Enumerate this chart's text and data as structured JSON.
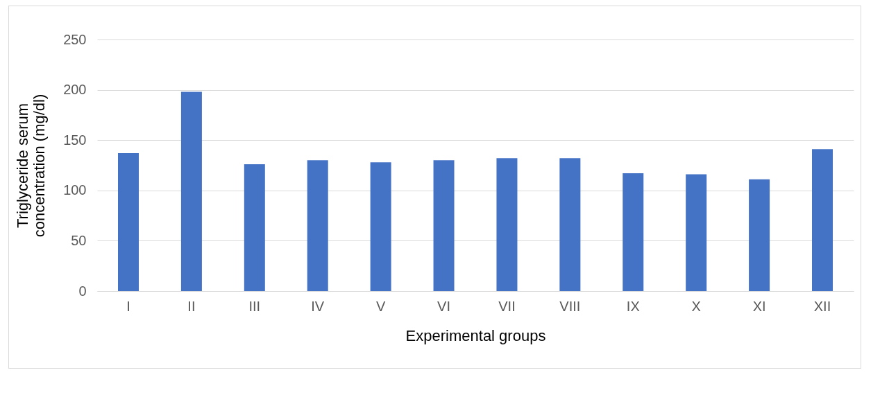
{
  "chart_data": {
    "type": "bar",
    "xlabel": "Experimental groups",
    "ylabel": "Triglyceride serum concentration (mg/dl)",
    "categories": [
      "I",
      "II",
      "III",
      "IV",
      "V",
      "VI",
      "VII",
      "VIII",
      "IX",
      "X",
      "XI",
      "XII"
    ],
    "values": [
      137,
      198,
      126,
      130,
      128,
      130,
      132,
      132,
      117,
      116,
      111,
      141
    ],
    "color": "#4472c4",
    "ylim": [
      0,
      250
    ],
    "yticks": [
      0,
      50,
      100,
      150,
      200,
      250
    ],
    "grid": "y"
  }
}
